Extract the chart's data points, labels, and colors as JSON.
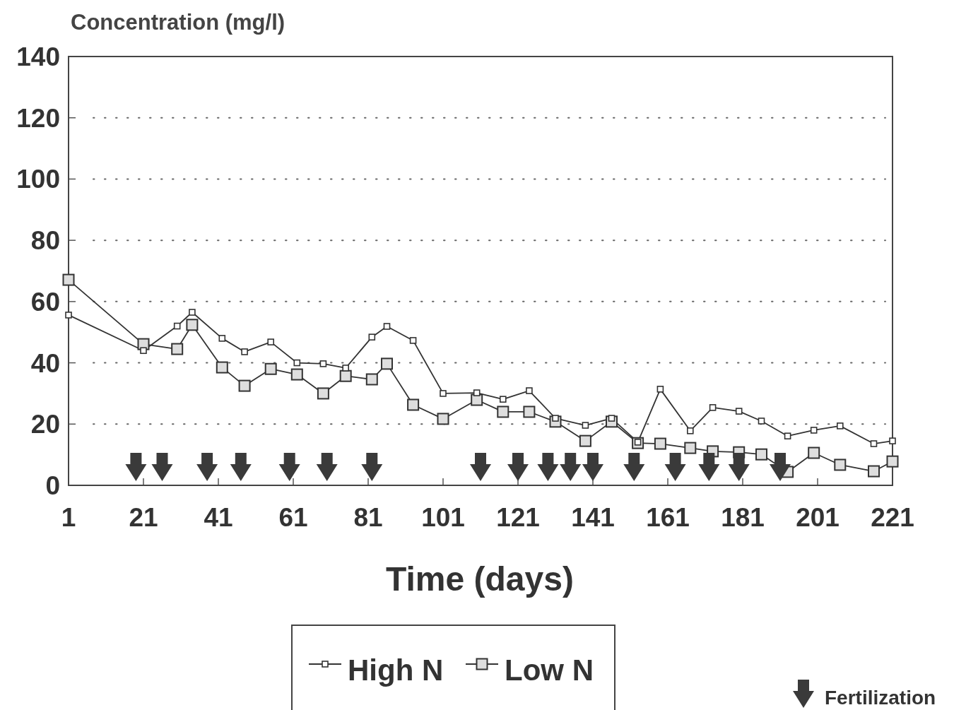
{
  "chart_data": {
    "type": "line",
    "xlabel": "Time (days)",
    "ylabel": "Concentration (mg/l)",
    "xlim": [
      1,
      221
    ],
    "xticks": [
      1,
      21,
      41,
      61,
      81,
      101,
      121,
      141,
      161,
      181,
      201,
      221
    ],
    "ylim": [
      0,
      140
    ],
    "yticks": [
      0,
      20,
      40,
      60,
      80,
      100,
      120,
      140
    ],
    "grid": "y",
    "legend": "bottom",
    "marker": "square",
    "line_style": "solid",
    "series": [
      {
        "name": "High N",
        "color": "#333333",
        "x": [
          1,
          21,
          30,
          34,
          42,
          48,
          55,
          62,
          69,
          75,
          82,
          86,
          93,
          101,
          110,
          117,
          124,
          131,
          139,
          146,
          153,
          159,
          167,
          173,
          180,
          186,
          193,
          200,
          207,
          216,
          221
        ],
        "values": [
          55.6,
          44,
          52,
          56.5,
          48,
          43.6,
          46.8,
          40,
          39.7,
          38.3,
          48.4,
          51.9,
          47.3,
          30,
          30.2,
          28.1,
          30.9,
          21.9,
          19.6,
          21.9,
          14.1,
          31.4,
          17.8,
          25.4,
          24.2,
          21,
          16.1,
          18,
          19.4,
          13.6,
          14.5
        ]
      },
      {
        "name": "Low N",
        "color": "#333333",
        "x": [
          1,
          21,
          30,
          34,
          42,
          48,
          55,
          62,
          69,
          75,
          82,
          86,
          93,
          101,
          110,
          117,
          124,
          131,
          139,
          146,
          153,
          159,
          167,
          173,
          180,
          186,
          193,
          200,
          207,
          216,
          221
        ],
        "values": [
          67.1,
          46.1,
          44.5,
          52.4,
          38.5,
          32.5,
          38,
          36.2,
          30,
          35.7,
          34.6,
          39.7,
          26.3,
          21.7,
          27.9,
          24,
          24,
          20.8,
          14.5,
          20.8,
          13.8,
          13.6,
          12.2,
          11.1,
          10.8,
          10.1,
          4.4,
          10.6,
          6.7,
          4.6,
          7.8
        ]
      },
      {
        "name": "Fertilization",
        "type": "scatter",
        "marker": "triangle",
        "color": "#3a3a3a",
        "x": [
          19,
          26,
          38,
          47,
          60,
          70,
          82,
          111,
          121,
          129,
          135,
          141,
          152,
          163,
          172,
          180,
          191
        ],
        "values": [
          6,
          6,
          6,
          6,
          6,
          6,
          6,
          6,
          6,
          6,
          6,
          6,
          6,
          6,
          6,
          6,
          6
        ]
      }
    ]
  }
}
